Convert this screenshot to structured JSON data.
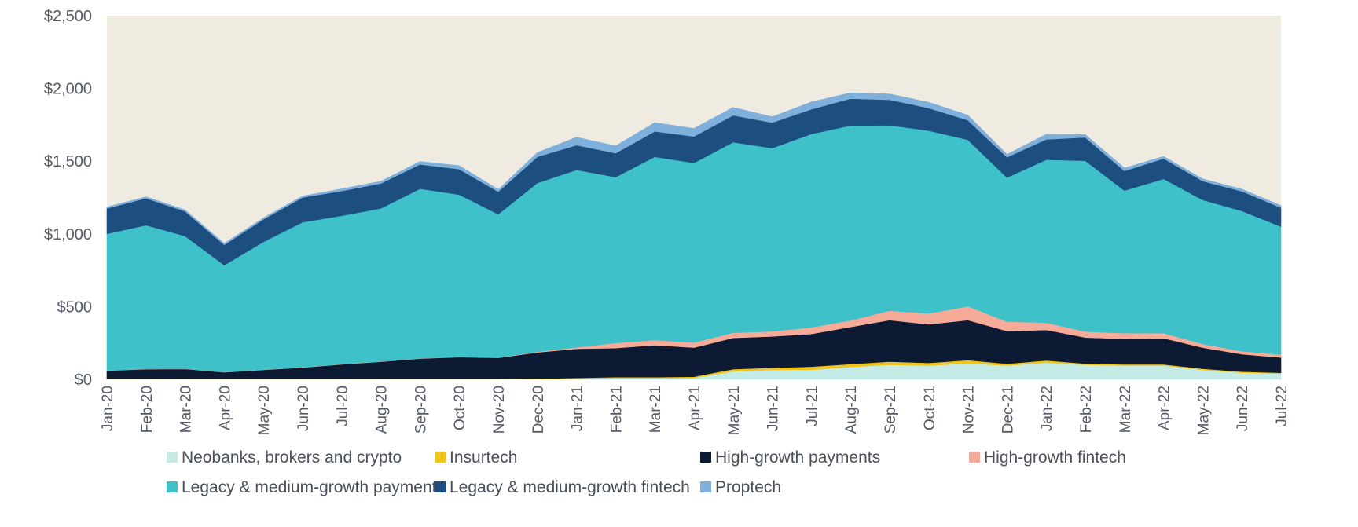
{
  "chart_data": {
    "type": "area",
    "stacked": true,
    "title": "",
    "xlabel": "",
    "ylabel": "",
    "ylim": [
      0,
      2500
    ],
    "y_ticks": [
      0,
      500,
      1000,
      1500,
      2000,
      2500
    ],
    "y_tick_labels": [
      "$0",
      "$500",
      "$1,000",
      "$1,500",
      "$2,000",
      "$2,500"
    ],
    "categories": [
      "Jan-20",
      "Feb-20",
      "Mar-20",
      "Apr-20",
      "May-20",
      "Jun-20",
      "Jul-20",
      "Aug-20",
      "Sep-20",
      "Oct-20",
      "Nov-20",
      "Dec-20",
      "Jan-21",
      "Feb-21",
      "Mar-21",
      "Apr-21",
      "May-21",
      "Jun-21",
      "Jul-21",
      "Aug-21",
      "Sep-21",
      "Oct-21",
      "Nov-21",
      "Dec-21",
      "Jan-22",
      "Feb-22",
      "Mar-22",
      "Apr-22",
      "May-22",
      "Jun-22",
      "Jul-22"
    ],
    "background_color": "#f0ebe1",
    "legend_position": "bottom",
    "series": [
      {
        "name": "Neobanks, brokers and crypto",
        "color": "#c5ebe6",
        "values": [
          2,
          2,
          2,
          2,
          2,
          2,
          2,
          2,
          2,
          2,
          2,
          2,
          5,
          8,
          8,
          10,
          55,
          65,
          65,
          85,
          100,
          95,
          110,
          95,
          115,
          100,
          95,
          95,
          65,
          45,
          40
        ]
      },
      {
        "name": "Insurtech",
        "color": "#f0c419",
        "values": [
          1,
          1,
          1,
          1,
          1,
          1,
          1,
          1,
          1,
          1,
          1,
          3,
          5,
          7,
          7,
          8,
          15,
          15,
          22,
          20,
          22,
          18,
          22,
          12,
          15,
          8,
          8,
          8,
          8,
          8,
          5
        ]
      },
      {
        "name": "High-growth payments",
        "color": "#0c1a33",
        "values": [
          57,
          67,
          68,
          45,
          62,
          78,
          100,
          118,
          140,
          150,
          145,
          180,
          200,
          200,
          220,
          200,
          215,
          215,
          225,
          255,
          285,
          265,
          275,
          225,
          210,
          180,
          175,
          180,
          145,
          120,
          105
        ]
      },
      {
        "name": "High-growth fintech",
        "color": "#f6ab98",
        "values": [
          2,
          2,
          2,
          2,
          2,
          2,
          2,
          2,
          2,
          2,
          2,
          5,
          10,
          35,
          35,
          35,
          35,
          35,
          45,
          45,
          65,
          75,
          95,
          65,
          50,
          40,
          40,
          35,
          25,
          20,
          20
        ]
      },
      {
        "name": "Legacy & medium-growth payments",
        "color": "#3fc1c9",
        "values": [
          938,
          988,
          912,
          735,
          878,
          997,
          1020,
          1052,
          1165,
          1115,
          985,
          1160,
          1220,
          1140,
          1260,
          1235,
          1310,
          1260,
          1330,
          1340,
          1275,
          1257,
          1145,
          990,
          1120,
          1175,
          980,
          1060,
          990,
          965,
          880
        ]
      },
      {
        "name": "Legacy & medium-growth fintech",
        "color": "#1d4e80",
        "values": [
          175,
          185,
          170,
          140,
          155,
          170,
          170,
          172,
          168,
          175,
          155,
          180,
          170,
          165,
          175,
          182,
          185,
          175,
          170,
          185,
          175,
          155,
          135,
          140,
          140,
          160,
          135,
          140,
          130,
          135,
          130
        ]
      },
      {
        "name": "Proptech",
        "color": "#7fb0dc",
        "values": [
          10,
          10,
          10,
          10,
          10,
          10,
          15,
          15,
          20,
          25,
          15,
          30,
          55,
          50,
          60,
          55,
          55,
          40,
          50,
          40,
          40,
          40,
          35,
          20,
          35,
          20,
          20,
          15,
          15,
          15,
          15
        ]
      }
    ]
  }
}
